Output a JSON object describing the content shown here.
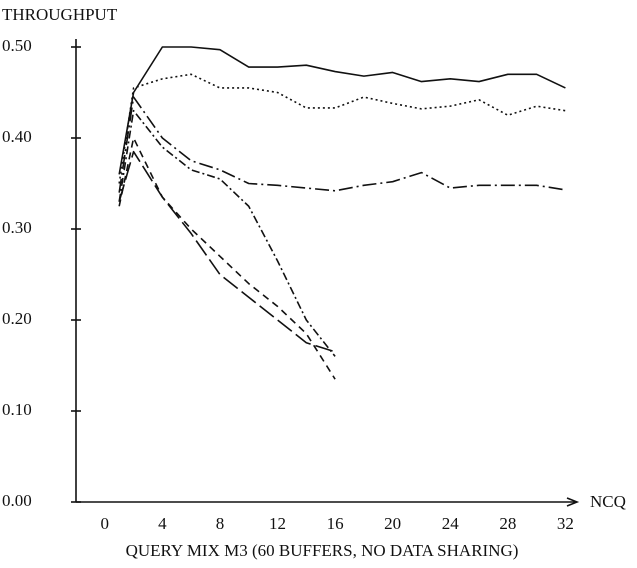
{
  "chart_data": {
    "type": "line",
    "y_label": "THROUGHPUT",
    "x_label": "NCQ",
    "caption": "QUERY MIX M3 (60 BUFFERS, NO DATA SHARING)",
    "x": [
      1,
      2,
      4,
      6,
      8,
      10,
      12,
      14,
      16,
      18,
      20,
      22,
      24,
      26,
      28,
      30,
      32
    ],
    "series": [
      {
        "color": "#111111",
        "style": "solid",
        "values": [
          0.36,
          0.45,
          0.5,
          0.5,
          0.497,
          0.478,
          0.478,
          0.48,
          0.473,
          0.468,
          0.472,
          0.462,
          0.465,
          0.462,
          0.47,
          0.47,
          0.455
        ]
      },
      {
        "color": "#111111",
        "style": "dotted",
        "values": [
          0.35,
          0.455,
          0.465,
          0.47,
          0.455,
          0.455,
          0.45,
          0.433,
          0.433,
          0.445,
          0.438,
          0.432,
          0.435,
          0.442,
          0.425,
          0.435,
          0.43
        ]
      },
      {
        "color": "#111111",
        "style": "longdashdot",
        "values": [
          0.34,
          0.445,
          0.4,
          0.375,
          0.365,
          0.35,
          0.348,
          0.345,
          0.342,
          0.348,
          0.352,
          0.362,
          0.345,
          0.348,
          0.348,
          0.348,
          0.343
        ]
      },
      {
        "color": "#111111",
        "style": "dashdot",
        "values": [
          0.33,
          0.43,
          0.39,
          0.365,
          0.355,
          0.325,
          0.265,
          0.2,
          0.16,
          null,
          null,
          null,
          null,
          null,
          null,
          null,
          null
        ]
      },
      {
        "color": "#111111",
        "style": "dashed",
        "values": [
          0.325,
          0.4,
          0.335,
          0.3,
          0.27,
          0.24,
          0.215,
          0.185,
          0.135,
          null,
          null,
          null,
          null,
          null,
          null,
          null,
          null
        ]
      },
      {
        "color": "#111111",
        "style": "longdash",
        "values": [
          0.33,
          0.385,
          0.335,
          0.295,
          0.25,
          0.225,
          0.2,
          0.175,
          0.165,
          null,
          null,
          null,
          null,
          null,
          null,
          null,
          null
        ]
      }
    ],
    "xlim": [
      -2,
      33.5
    ],
    "ylim": [
      0,
      0.5
    ],
    "xticks": [
      0,
      4,
      8,
      12,
      16,
      20,
      24,
      28,
      32
    ],
    "yticks": [
      {
        "value": 0,
        "label": "0.00"
      },
      {
        "value": 0.1,
        "label": "0.10"
      },
      {
        "value": 0.2,
        "label": "0.20"
      },
      {
        "value": 0.3,
        "label": "0.30"
      },
      {
        "value": 0.4,
        "label": "0.40"
      },
      {
        "value": 0.5,
        "label": "0.50"
      }
    ],
    "grid": false
  }
}
